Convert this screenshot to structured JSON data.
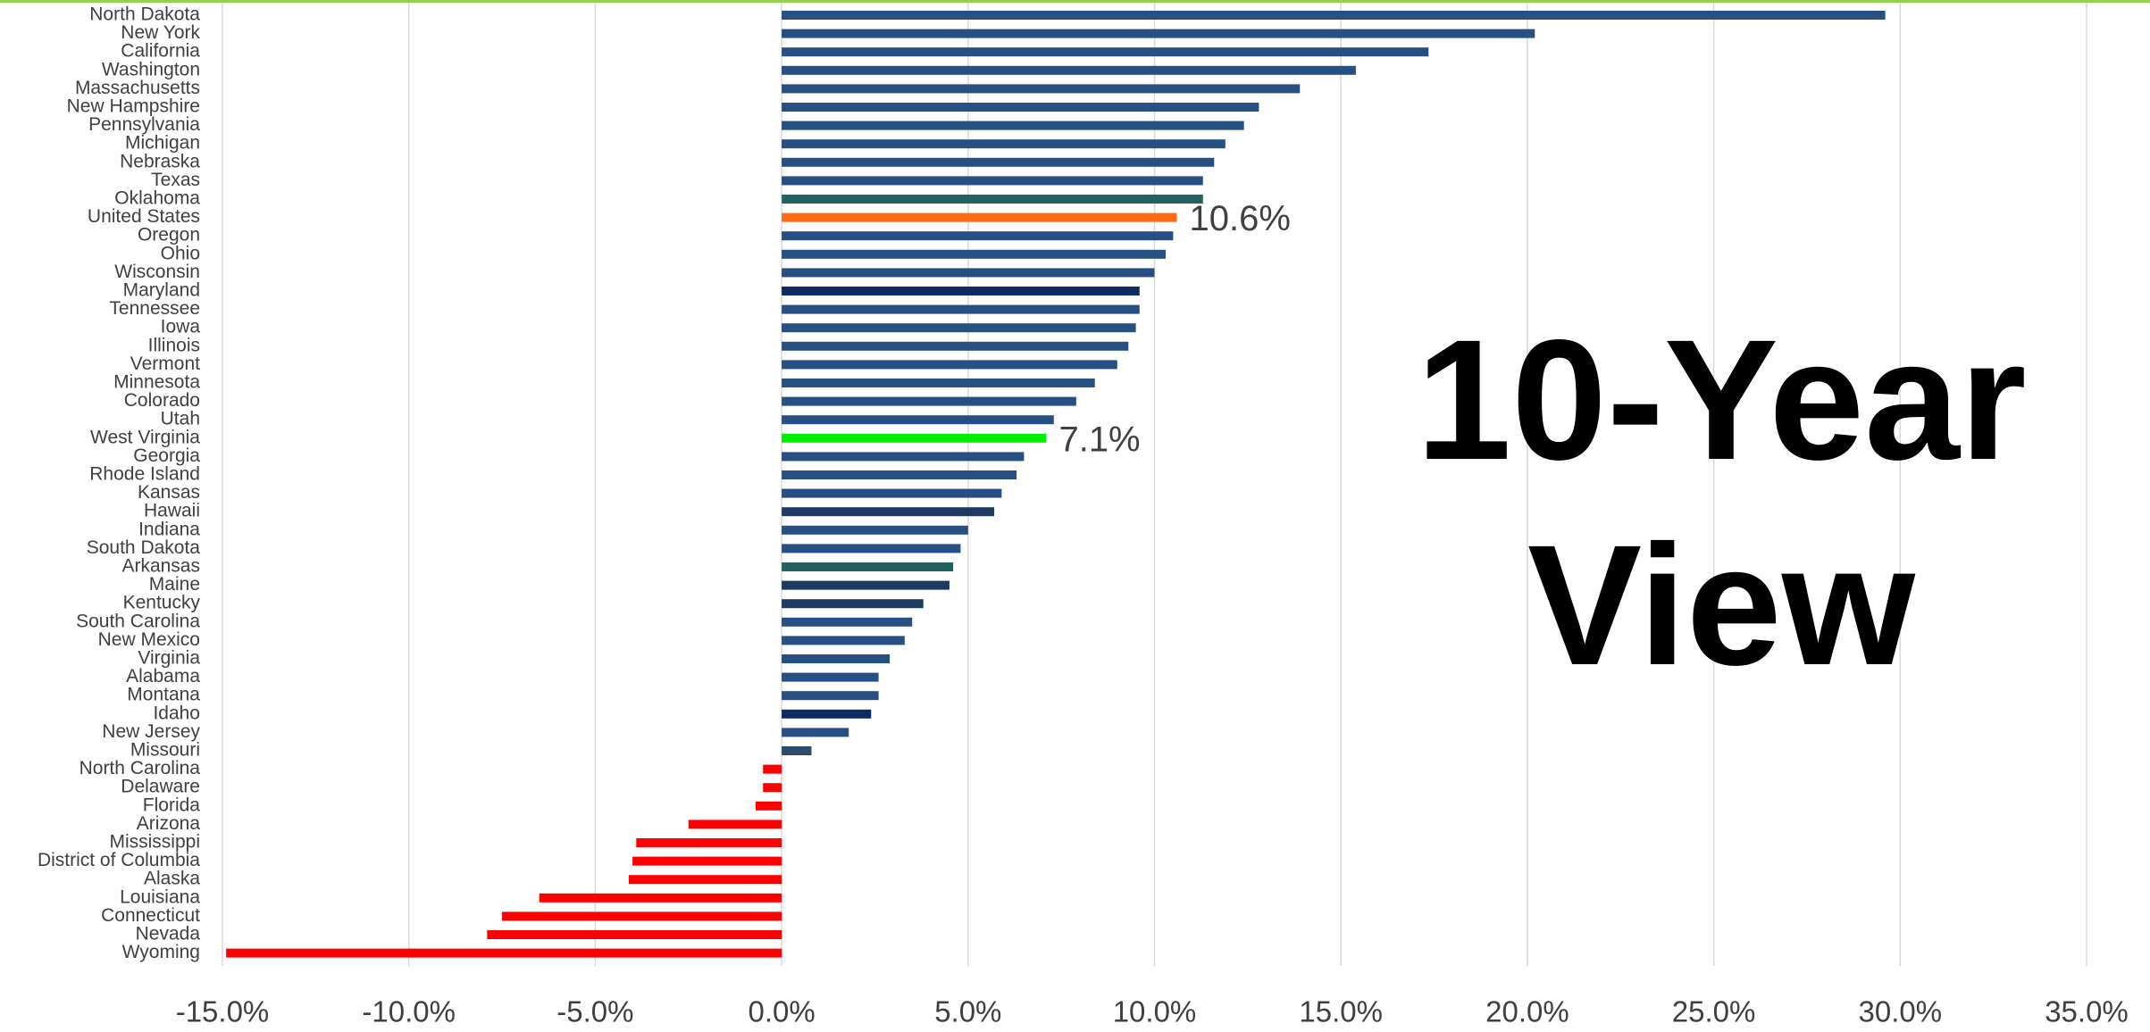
{
  "chart_data": {
    "type": "barh",
    "annotation": "10-Year View",
    "categories": [
      "North Dakota",
      "New York",
      "California",
      "Washington",
      "Massachusetts",
      "New Hampshire",
      "Pennsylvania",
      "Michigan",
      "Nebraska",
      "Texas",
      "Oklahoma",
      "United States",
      "Oregon",
      "Ohio",
      "Wisconsin",
      "Maryland",
      "Tennessee",
      "Iowa",
      "Illinois",
      "Vermont",
      "Minnesota",
      "Colorado",
      "Utah",
      "West Virginia",
      "Georgia",
      "Rhode Island",
      "Kansas",
      "Hawaii",
      "Indiana",
      "South Dakota",
      "Arkansas",
      "Maine",
      "Kentucky",
      "South Carolina",
      "New Mexico",
      "Virginia",
      "Alabama",
      "Montana",
      "Idaho",
      "New Jersey",
      "Missouri",
      "North Carolina",
      "Delaware",
      "Florida",
      "Arizona",
      "Mississippi",
      "District of Columbia",
      "Alaska",
      "Louisiana",
      "Connecticut",
      "Nevada",
      "Wyoming"
    ],
    "values": [
      29.6,
      20.2,
      17.35,
      15.4,
      13.9,
      12.8,
      12.4,
      11.9,
      11.6,
      11.3,
      11.3,
      10.6,
      10.5,
      10.3,
      10.0,
      9.6,
      9.6,
      9.5,
      9.3,
      9.0,
      8.4,
      7.9,
      7.3,
      7.1,
      6.5,
      6.3,
      5.9,
      5.7,
      5.0,
      4.8,
      4.6,
      4.5,
      3.8,
      3.5,
      3.3,
      2.9,
      2.6,
      2.6,
      2.4,
      1.8,
      0.8,
      -0.5,
      -0.5,
      -0.7,
      -2.5,
      -3.9,
      -4.0,
      -4.1,
      -6.5,
      -7.5,
      -7.9,
      -14.9
    ],
    "value_labels": [
      null,
      null,
      null,
      null,
      null,
      null,
      null,
      null,
      null,
      null,
      null,
      "10.6%",
      null,
      null,
      null,
      null,
      null,
      null,
      null,
      null,
      null,
      null,
      null,
      "7.1%",
      null,
      null,
      null,
      null,
      null,
      null,
      null,
      null,
      null,
      null,
      null,
      null,
      null,
      null,
      null,
      null,
      null,
      null,
      null,
      null,
      null,
      null,
      null,
      null,
      null,
      null,
      null,
      null
    ],
    "colors": [
      "#264f82",
      "#264f82",
      "#264f82",
      "#264f82",
      "#264f82",
      "#264f82",
      "#264f82",
      "#264f82",
      "#264f82",
      "#264f82",
      "#24605e",
      "#ff6a13",
      "#264f82",
      "#264f82",
      "#264f82",
      "#0d2a63",
      "#264f82",
      "#264f82",
      "#264f82",
      "#264f82",
      "#264f82",
      "#264f82",
      "#264f82",
      "#00ee00",
      "#264f82",
      "#264f82",
      "#264f82",
      "#1f3a62",
      "#264f82",
      "#264f82",
      "#24605e",
      "#1f3a62",
      "#1f3a62",
      "#264f82",
      "#264f82",
      "#264f82",
      "#264f82",
      "#264f82",
      "#0d2a63",
      "#264f82",
      "#2b4a6e",
      "#ff0000",
      "#ff0000",
      "#ff0000",
      "#ff0000",
      "#ff0000",
      "#ff0000",
      "#ff0000",
      "#ff0000",
      "#ff0000",
      "#ff0000",
      "#ff0000"
    ],
    "xlim": [
      -15,
      35
    ],
    "xticks": [
      {
        "value": -15,
        "label": "-15.0%"
      },
      {
        "value": -10,
        "label": "-10.0%"
      },
      {
        "value": -5,
        "label": "-5.0%"
      },
      {
        "value": 0,
        "label": "0.0%"
      },
      {
        "value": 5,
        "label": "5.0%"
      },
      {
        "value": 10,
        "label": "10.0%"
      },
      {
        "value": 15,
        "label": "15.0%"
      },
      {
        "value": 20,
        "label": "20.0%"
      },
      {
        "value": 25,
        "label": "25.0%"
      },
      {
        "value": 30,
        "label": "30.0%"
      },
      {
        "value": 35,
        "label": "35.0%"
      }
    ],
    "grid": true
  }
}
